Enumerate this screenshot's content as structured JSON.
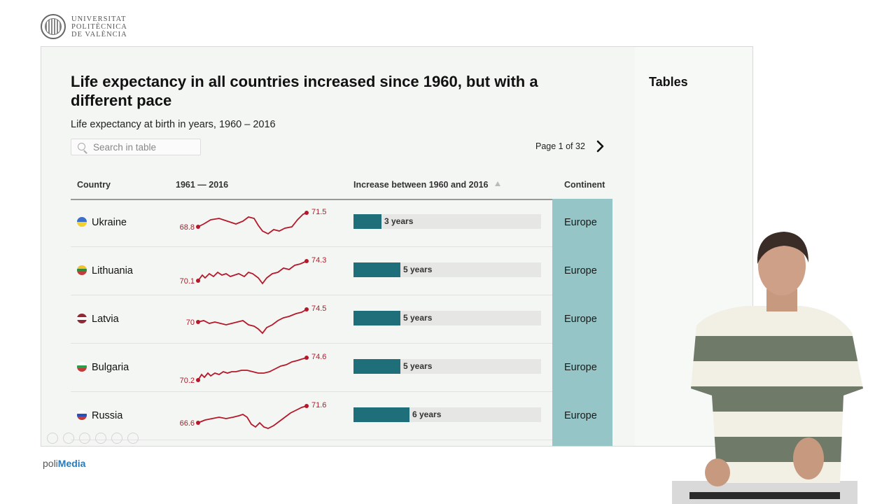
{
  "branding": {
    "university_lines": [
      "UNIVERSITAT",
      "POLITÈCNICA",
      "DE VALÈNCIA"
    ],
    "footer_part1": "poli",
    "footer_part2": "Media"
  },
  "sidebar": {
    "title": "Tables"
  },
  "chart": {
    "title": "Life expectancy in all countries increased since 1960, but with a different pace",
    "subtitle": "Life expectancy at birth in years, 1960 – 2016"
  },
  "search": {
    "placeholder": "Search in table"
  },
  "pager": {
    "text": "Page 1 of 32"
  },
  "table": {
    "headers": {
      "country": "Country",
      "trend": "1961 — 2016",
      "increase": "Increase between 1960 and 2016",
      "continent": "Continent"
    },
    "rows": [
      {
        "country": "Ukraine",
        "start": "68.8",
        "end": "71.5",
        "increase": "3 years",
        "increase_value": 3,
        "continent": "Europe",
        "flag": [
          "#3b6fc9",
          "#f2d22e"
        ]
      },
      {
        "country": "Lithuania",
        "start": "70.1",
        "end": "74.3",
        "increase": "5 years",
        "increase_value": 5,
        "continent": "Europe",
        "flag": [
          "#f2c12e",
          "#2f8a3b",
          "#c43b3b"
        ]
      },
      {
        "country": "Latvia",
        "start": "70",
        "end": "74.5",
        "increase": "5 years",
        "increase_value": 5,
        "continent": "Europe",
        "flag": [
          "#8e2a35",
          "#ffffff",
          "#8e2a35"
        ]
      },
      {
        "country": "Bulgaria",
        "start": "70.2",
        "end": "74.6",
        "increase": "5 years",
        "increase_value": 5,
        "continent": "Europe",
        "flag": [
          "#ffffff",
          "#2f9a4a",
          "#c43b3b"
        ]
      },
      {
        "country": "Russia",
        "start": "66.6",
        "end": "71.6",
        "increase": "6 years",
        "increase_value": 6,
        "continent": "Europe",
        "flag": [
          "#ffffff",
          "#2b4fb8",
          "#c43b3b"
        ]
      }
    ]
  },
  "colors": {
    "sparkline": "#b5182a",
    "bar": "#1f6f7a",
    "continent_column": "#95c5c6"
  }
}
